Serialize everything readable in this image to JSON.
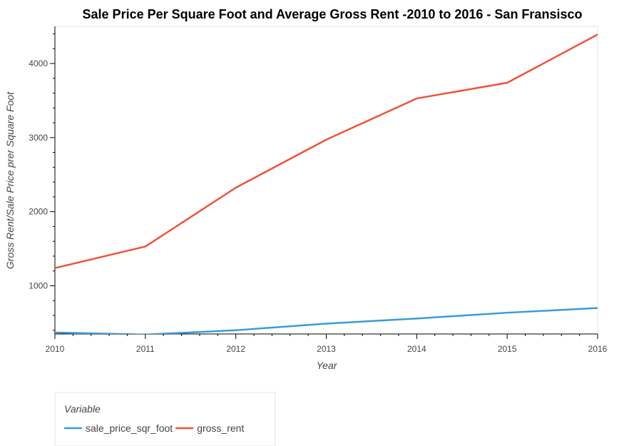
{
  "chart_data": {
    "type": "line",
    "title": "Sale Price Per Square Foot and Average Gross Rent -2010 to 2016 - San Fransisco",
    "xlabel": "Year",
    "ylabel": "Gross Rent/Sale Price prer Square Foot",
    "x": [
      2010,
      2011,
      2012,
      2013,
      2014,
      2015,
      2016
    ],
    "x_ticks": [
      "2010",
      "2011",
      "2012",
      "2013",
      "2014",
      "2015",
      "2016"
    ],
    "y_ticks": [
      "1000",
      "2000",
      "3000",
      "4000"
    ],
    "xlim": [
      2010,
      2016
    ],
    "ylim": [
      350,
      4500
    ],
    "grid": false,
    "legend": {
      "title": "Variable",
      "placement": "bottom-left"
    },
    "series": [
      {
        "name": "sale_price_sqr_foot",
        "color": "#3a9bd8",
        "values": [
          369,
          342,
          400,
          490,
          558,
          637,
          700
        ]
      },
      {
        "name": "gross_rent",
        "color": "#ee5339",
        "values": [
          1239,
          1530,
          2324,
          2971,
          3528,
          3739,
          4391
        ]
      }
    ]
  }
}
